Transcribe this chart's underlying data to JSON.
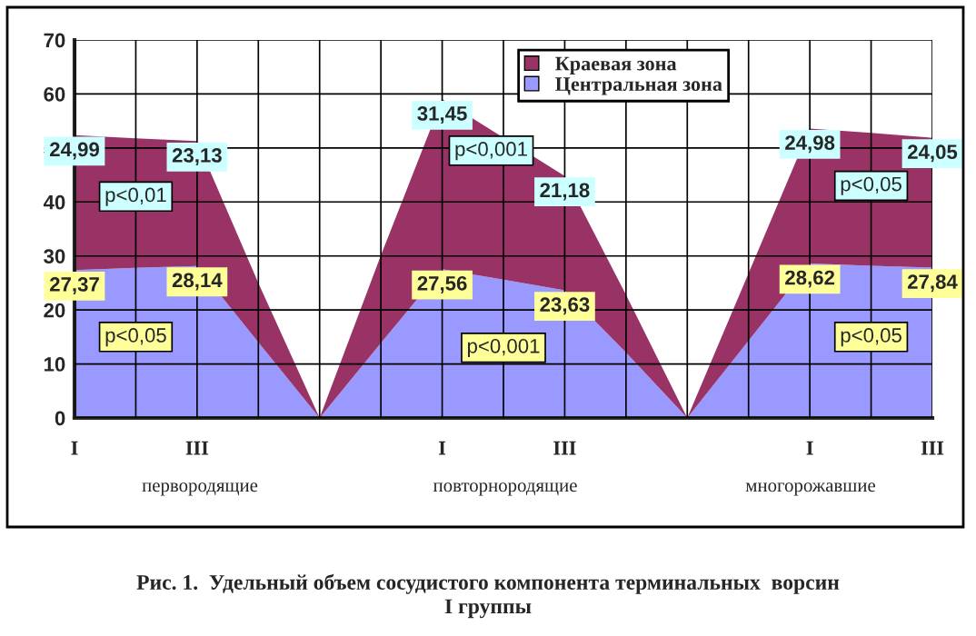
{
  "chart_data": {
    "type": "area",
    "stacked": true,
    "title": "Рис. 1.  Удельный объем сосудистого компонента терминальных  ворсин\nI группы",
    "categories": [
      "I",
      null,
      "III",
      null,
      null,
      null,
      "I",
      null,
      "III",
      null,
      null,
      null,
      "I",
      null,
      "III"
    ],
    "series": [
      {
        "name": "Центральная зона",
        "color": "#9999ff",
        "values": [
          27.37,
          27.8,
          28.14,
          14.0,
          0,
          13.9,
          27.56,
          25.6,
          23.63,
          12.1,
          0,
          14.3,
          28.62,
          28.2,
          27.84
        ],
        "value_labels": [
          "27,37",
          null,
          "28,14",
          null,
          null,
          null,
          "27,56",
          null,
          "23,63",
          null,
          null,
          null,
          "28,62",
          null,
          "27,84"
        ]
      },
      {
        "name": "Краевая зона",
        "color": "#993366",
        "values": [
          24.99,
          24.0,
          23.13,
          11.0,
          0,
          16.2,
          31.45,
          26.3,
          21.18,
          10.7,
          0,
          12.5,
          24.98,
          24.6,
          24.05
        ],
        "value_labels": [
          "24,99",
          null,
          "23,13",
          null,
          null,
          null,
          "31,45",
          null,
          "21,18",
          null,
          null,
          null,
          "24,98",
          null,
          "24,05"
        ]
      }
    ],
    "ylim": [
      0,
      70
    ],
    "yticks": [
      0,
      10,
      20,
      30,
      40,
      50,
      60,
      70
    ],
    "grid": true,
    "legend": "top",
    "annotations": [
      "p<0,01",
      "p<0,05",
      "p<0,001",
      "p<0,001",
      "p<0,05",
      "p<0,05",
      "первородящие",
      "повторнородящие",
      "многорожавшие"
    ]
  }
}
